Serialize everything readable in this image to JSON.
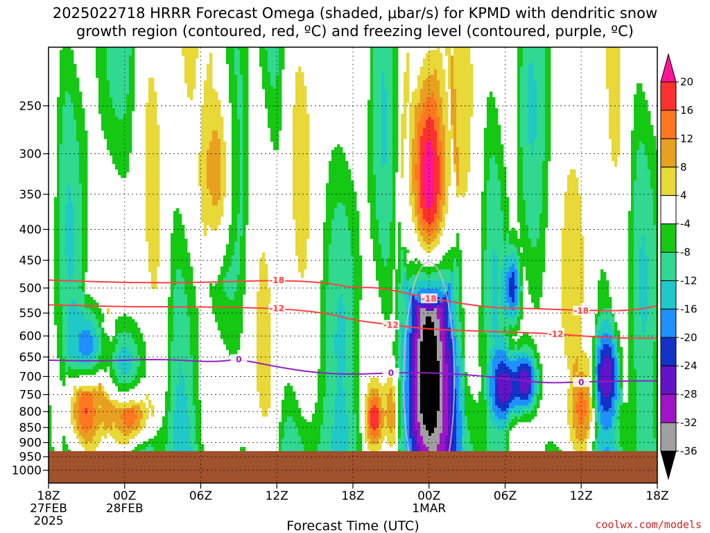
{
  "title": {
    "line1": "2025022718 HRRR Forecast Omega (shaded, μbar/s) for KPMD with dendritic snow",
    "line2": "growth region (contoured, red, ºC) and freezing level (contoured, purple, ºC)"
  },
  "credit": "coolwx.com/models",
  "chart_data": {
    "type": "heatmap",
    "title": "2025022718 HRRR Forecast Omega (shaded, μbar/s) for KPMD with dendritic snow growth region (contoured, red, ºC) and freezing level (contoured, purple, ºC)",
    "xlabel": "Forecast Time (UTC)",
    "ylabel": "",
    "x_range_hours": [
      0,
      48
    ],
    "x_ticks": [
      {
        "hour": 0,
        "lines": [
          "18Z",
          "27FEB",
          "2025"
        ]
      },
      {
        "hour": 6,
        "lines": [
          "00Z",
          "28FEB"
        ]
      },
      {
        "hour": 12,
        "lines": [
          "06Z"
        ]
      },
      {
        "hour": 18,
        "lines": [
          "12Z"
        ]
      },
      {
        "hour": 24,
        "lines": [
          "18Z"
        ]
      },
      {
        "hour": 30,
        "lines": [
          "00Z",
          "1MAR"
        ]
      },
      {
        "hour": 36,
        "lines": [
          "06Z"
        ]
      },
      {
        "hour": 42,
        "lines": [
          "12Z"
        ]
      },
      {
        "hour": 48,
        "lines": [
          "18Z"
        ]
      }
    ],
    "y_axis": {
      "scale": "pressure",
      "range_hPa": [
        200,
        1050
      ],
      "reversed": true
    },
    "y_ticks": [
      250,
      300,
      350,
      400,
      450,
      500,
      550,
      600,
      650,
      700,
      750,
      800,
      850,
      900,
      950,
      1000
    ],
    "grid": true,
    "surface_pressure_hPa": 930,
    "colorbar": {
      "levels": [
        20,
        16,
        12,
        8,
        4,
        -4,
        -8,
        -12,
        -16,
        -20,
        -24,
        -28,
        -32,
        -36
      ],
      "colors": [
        "#ff1493",
        "#ff3030",
        "#ff7820",
        "#e8a020",
        "#e8d838",
        "#ffffff",
        "#14c814",
        "#30d890",
        "#20c8c8",
        "#1e90ff",
        "#1432c8",
        "#6414c8",
        "#a014c8",
        "#a0a0a0",
        "#000000"
      ]
    },
    "omega_features": [
      {
        "center_hour": 2.9,
        "center_hPa": 800,
        "width_hours": 1.4,
        "height_hPa": 130,
        "value": 14
      },
      {
        "center_hour": 6.4,
        "center_hPa": 815,
        "width_hours": 1.8,
        "height_hPa": 90,
        "value": 12
      },
      {
        "center_hour": 13.2,
        "center_hPa": 320,
        "width_hours": 1.4,
        "height_hPa": 130,
        "value": 9
      },
      {
        "center_hour": 3.0,
        "center_hPa": 620,
        "width_hours": 1.4,
        "height_hPa": 90,
        "value": -16
      },
      {
        "center_hour": 6.0,
        "center_hPa": 660,
        "width_hours": 1.6,
        "height_hPa": 100,
        "value": -12
      },
      {
        "center_hour": 30.0,
        "center_hPa": 710,
        "width_hours": 2.1,
        "height_hPa": 430,
        "value": -36
      },
      {
        "center_hour": 30.0,
        "center_hPa": 330,
        "width_hours": 1.8,
        "height_hPa": 160,
        "value": 20
      },
      {
        "center_hour": 25.7,
        "center_hPa": 820,
        "width_hours": 0.7,
        "height_hPa": 100,
        "value": 17
      },
      {
        "center_hour": 27.0,
        "center_hPa": 800,
        "width_hours": 0.6,
        "height_hPa": 120,
        "value": 10
      },
      {
        "center_hour": 36.6,
        "center_hPa": 500,
        "width_hours": 0.7,
        "height_hPa": 80,
        "value": -20
      },
      {
        "center_hour": 36.0,
        "center_hPa": 730,
        "width_hours": 1.2,
        "height_hPa": 100,
        "value": -24
      },
      {
        "center_hour": 37.6,
        "center_hPa": 715,
        "width_hours": 1.0,
        "height_hPa": 90,
        "value": -24
      },
      {
        "center_hour": 42.0,
        "center_hPa": 790,
        "width_hours": 1.0,
        "height_hPa": 150,
        "value": 12
      },
      {
        "center_hour": 44.0,
        "center_hPa": 700,
        "width_hours": 1.0,
        "height_hPa": 120,
        "value": -24
      }
    ],
    "contours": [
      {
        "label": "-18",
        "color": "#ff4040",
        "points": [
          [
            0,
            485
          ],
          [
            6,
            490
          ],
          [
            12,
            490
          ],
          [
            18,
            485
          ],
          [
            22,
            490
          ],
          [
            24,
            500
          ],
          [
            26,
            498
          ],
          [
            30,
            520
          ],
          [
            35,
            540
          ],
          [
            38,
            540
          ],
          [
            42,
            545
          ],
          [
            46,
            545
          ],
          [
            48,
            535
          ]
        ]
      },
      {
        "label": "-12",
        "color": "#ff4040",
        "points": [
          [
            0,
            533
          ],
          [
            6,
            537
          ],
          [
            12,
            537
          ],
          [
            18,
            540
          ],
          [
            22,
            550
          ],
          [
            24,
            565
          ],
          [
            27,
            575
          ],
          [
            30,
            585
          ],
          [
            35,
            590
          ],
          [
            40,
            595
          ],
          [
            44,
            605
          ],
          [
            48,
            605
          ]
        ]
      },
      {
        "label": "0",
        "color": "#9020c0",
        "points": [
          [
            0,
            658
          ],
          [
            4,
            660
          ],
          [
            9,
            655
          ],
          [
            13,
            663
          ],
          [
            15,
            655
          ],
          [
            18,
            675
          ],
          [
            21,
            690
          ],
          [
            24,
            695
          ],
          [
            27,
            690
          ],
          [
            30,
            690
          ],
          [
            33,
            695
          ],
          [
            36,
            705
          ],
          [
            39,
            718
          ],
          [
            42,
            715
          ],
          [
            45,
            712
          ],
          [
            48,
            712
          ]
        ]
      }
    ]
  }
}
